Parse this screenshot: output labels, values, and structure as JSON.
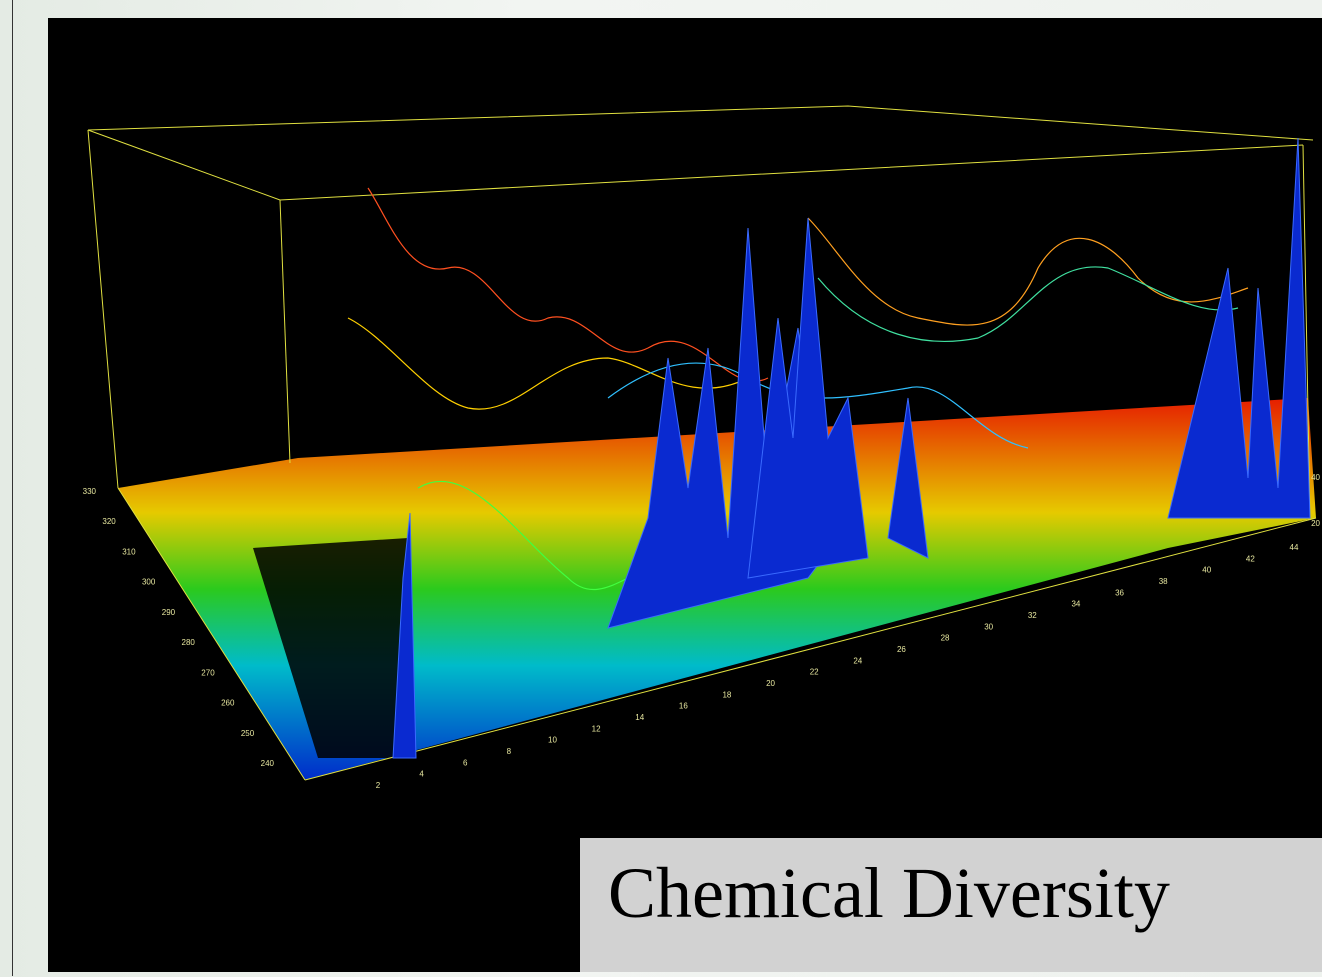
{
  "caption": "Chemical Diversity",
  "plot": {
    "wavelength_ticks": [
      240,
      250,
      260,
      270,
      280,
      290,
      300,
      310,
      320,
      330
    ],
    "time_ticks": [
      2,
      4,
      6,
      8,
      10,
      12,
      14,
      16,
      18,
      20,
      22,
      24,
      26,
      28,
      30,
      32,
      34,
      36,
      38,
      40,
      42,
      44
    ],
    "intensity_ticks": [
      20,
      40
    ]
  }
}
